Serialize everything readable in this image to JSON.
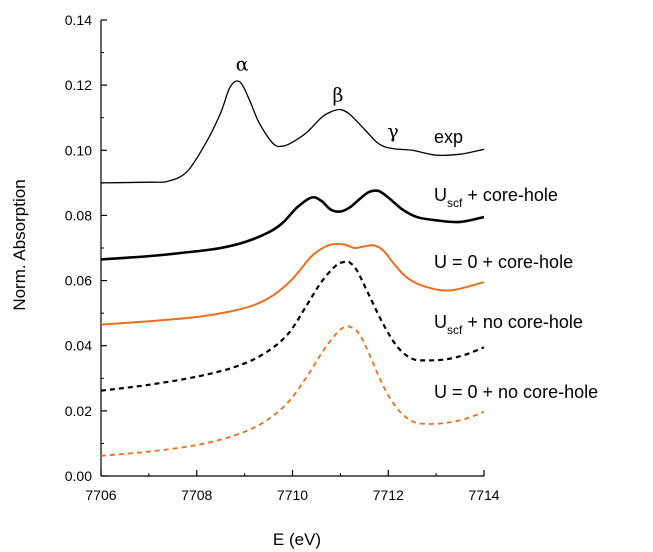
{
  "chart_data": {
    "type": "line",
    "xlabel": "E (eV)",
    "ylabel": "Norm. Absorption",
    "xlim": [
      7706,
      7714
    ],
    "ylim": [
      0.0,
      0.14
    ],
    "x_ticks": [
      "7706",
      "7708",
      "7710",
      "7712",
      "7714"
    ],
    "y_ticks": [
      "0.00",
      "0.02",
      "0.04",
      "0.06",
      "0.08",
      "0.10",
      "0.12",
      "0.14"
    ],
    "grid": false,
    "legend": "none",
    "series": [
      {
        "name": "exp",
        "color": "#000000",
        "style": "solid-thin",
        "label_x": 7711.7,
        "label_y": 0.1025,
        "x": [
          7706,
          7707,
          7707.4,
          7707.8,
          7708.2,
          7708.5,
          7708.7,
          7708.9,
          7709.1,
          7709.3,
          7709.6,
          7709.8,
          7710.0,
          7710.3,
          7710.6,
          7710.8,
          7711.0,
          7711.2,
          7711.5,
          7711.8,
          7712.1,
          7712.5,
          7713.0,
          7713.5,
          7714
        ],
        "y": [
          0.09,
          0.0902,
          0.0905,
          0.0935,
          0.1025,
          0.1115,
          0.1195,
          0.121,
          0.1155,
          0.1085,
          0.102,
          0.1013,
          0.1025,
          0.1055,
          0.11,
          0.1118,
          0.1125,
          0.111,
          0.1065,
          0.102,
          0.1005,
          0.1,
          0.0985,
          0.0988,
          0.1003
        ]
      },
      {
        "name": "Uscf + core-hole",
        "color": "#000000",
        "style": "solid-thick",
        "label_x": 7711.7,
        "label_y": 0.0855,
        "x": [
          7706,
          7707,
          7708,
          7708.5,
          7709,
          7709.5,
          7709.8,
          7710.1,
          7710.4,
          7710.6,
          7710.8,
          7711.0,
          7711.2,
          7711.4,
          7711.6,
          7711.8,
          7712.0,
          7712.3,
          7712.6,
          7713.0,
          7713.5,
          7714
        ],
        "y": [
          0.0665,
          0.0675,
          0.069,
          0.07,
          0.0718,
          0.0748,
          0.0778,
          0.0825,
          0.0855,
          0.0845,
          0.0818,
          0.0812,
          0.0825,
          0.085,
          0.0872,
          0.0875,
          0.0855,
          0.0818,
          0.0795,
          0.0785,
          0.078,
          0.0795
        ]
      },
      {
        "name": "U = 0 + core-hole",
        "color": "#E8701E",
        "style": "solid-orange",
        "label_x": 7711.7,
        "label_y": 0.0645,
        "x": [
          7706,
          7707,
          7708,
          7708.7,
          7709.2,
          7709.6,
          7710.0,
          7710.4,
          7710.7,
          7710.9,
          7711.1,
          7711.3,
          7711.5,
          7711.7,
          7711.9,
          7712.1,
          7712.4,
          7712.8,
          7713.3,
          7714
        ],
        "y": [
          0.0465,
          0.0475,
          0.0488,
          0.0505,
          0.0525,
          0.0555,
          0.0605,
          0.0675,
          0.0705,
          0.0712,
          0.071,
          0.07,
          0.0705,
          0.0708,
          0.0692,
          0.0655,
          0.0608,
          0.058,
          0.057,
          0.0595
        ]
      },
      {
        "name": "Uscf + no core-hole",
        "color": "#000000",
        "style": "dashed",
        "label_x": 7711.7,
        "label_y": 0.0455,
        "x": [
          7706,
          7707,
          7708,
          7708.8,
          7709.4,
          7709.9,
          7710.3,
          7710.6,
          7710.9,
          7711.1,
          7711.2,
          7711.35,
          7711.6,
          7711.9,
          7712.2,
          7712.5,
          7712.8,
          7713.2,
          7713.6,
          7714
        ],
        "y": [
          0.0262,
          0.028,
          0.0305,
          0.0335,
          0.0375,
          0.0435,
          0.0525,
          0.0595,
          0.0645,
          0.0658,
          0.0655,
          0.063,
          0.0555,
          0.0465,
          0.0395,
          0.036,
          0.0355,
          0.0358,
          0.0372,
          0.0395
        ]
      },
      {
        "name": "U = 0 + no core-hole",
        "color": "#E8701E",
        "style": "dashed-orange",
        "label_x": 7711.7,
        "label_y": 0.0245,
        "x": [
          7706,
          7707,
          7708,
          7708.8,
          7709.4,
          7709.9,
          7710.3,
          7710.6,
          7710.9,
          7711.1,
          7711.25,
          7711.4,
          7711.6,
          7711.9,
          7712.2,
          7712.5,
          7712.8,
          7713.2,
          7713.6,
          7714
        ],
        "y": [
          0.0062,
          0.0075,
          0.0095,
          0.0125,
          0.0165,
          0.0225,
          0.0305,
          0.0375,
          0.0435,
          0.0458,
          0.0455,
          0.0435,
          0.0375,
          0.0275,
          0.0205,
          0.0168,
          0.016,
          0.0163,
          0.0175,
          0.0197
        ]
      }
    ],
    "annotations": [
      {
        "text": "α",
        "x": 7708.95,
        "y": 0.1245
      },
      {
        "text": "β",
        "x": 7710.95,
        "y": 0.115
      },
      {
        "text": "γ",
        "x": 7712.1,
        "y": 0.104
      }
    ],
    "series_labels": {
      "exp": {
        "text": "exp"
      },
      "uscf_core": {
        "main": "U",
        "sub": "scf",
        "rest": " + core-hole"
      },
      "u0_core": {
        "text": "U = 0 + core-hole"
      },
      "uscf_nocore": {
        "main": "U",
        "sub": "scf",
        "rest": " + no core-hole"
      },
      "u0_nocore": {
        "text": "U = 0 + no core-hole"
      }
    }
  }
}
